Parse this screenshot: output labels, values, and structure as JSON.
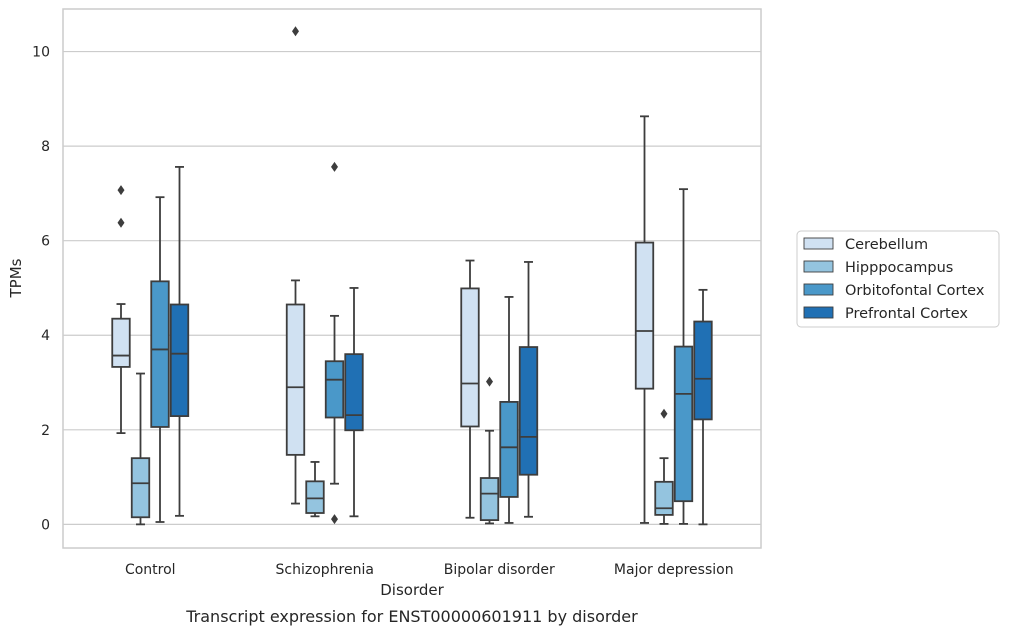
{
  "chart_data": {
    "type": "box",
    "xlabel": "Disorder",
    "ylabel": "TPMs",
    "caption": "Transcript expression for ENST00000601911 by disorder",
    "categories": [
      "Control",
      "Schizophrenia",
      "Bipolar disorder",
      "Major depression"
    ],
    "y_ticks": [
      0,
      2,
      4,
      6,
      8,
      10
    ],
    "ylim": [
      -0.5,
      10.9
    ],
    "grid": "horizontal",
    "legend_position": "right",
    "series": [
      {
        "name": "Cerebellum",
        "color": "#d0e1f2",
        "boxes": [
          {
            "whisker_low": 1.93,
            "q1": 3.33,
            "median": 3.57,
            "q3": 4.35,
            "whisker_high": 4.66,
            "outliers": [
              6.38,
              7.07
            ]
          },
          {
            "whisker_low": 0.44,
            "q1": 1.47,
            "median": 2.9,
            "q3": 4.65,
            "whisker_high": 5.16,
            "outliers": [
              10.43
            ]
          },
          {
            "whisker_low": 0.14,
            "q1": 2.07,
            "median": 2.98,
            "q3": 4.99,
            "whisker_high": 5.58,
            "outliers": []
          },
          {
            "whisker_low": 0.03,
            "q1": 2.87,
            "median": 4.09,
            "q3": 5.96,
            "whisker_high": 8.63,
            "outliers": []
          }
        ]
      },
      {
        "name": "Hipppocampus",
        "color": "#94c4df",
        "boxes": [
          {
            "whisker_low": 0.0,
            "q1": 0.15,
            "median": 0.87,
            "q3": 1.4,
            "whisker_high": 3.19,
            "outliers": []
          },
          {
            "whisker_low": 0.17,
            "q1": 0.24,
            "median": 0.55,
            "q3": 0.91,
            "whisker_high": 1.32,
            "outliers": []
          },
          {
            "whisker_low": 0.02,
            "q1": 0.09,
            "median": 0.65,
            "q3": 0.98,
            "whisker_high": 1.98,
            "outliers": [
              3.02
            ]
          },
          {
            "whisker_low": 0.01,
            "q1": 0.2,
            "median": 0.34,
            "q3": 0.9,
            "whisker_high": 1.4,
            "outliers": [
              2.34
            ]
          }
        ]
      },
      {
        "name": "Orbitofontal Cortex",
        "color": "#4a98c9",
        "boxes": [
          {
            "whisker_low": 0.05,
            "q1": 2.06,
            "median": 3.7,
            "q3": 5.14,
            "whisker_high": 6.92,
            "outliers": []
          },
          {
            "whisker_low": 0.86,
            "q1": 2.26,
            "median": 3.06,
            "q3": 3.45,
            "whisker_high": 4.41,
            "outliers": [
              0.11,
              7.56
            ]
          },
          {
            "whisker_low": 0.03,
            "q1": 0.58,
            "median": 1.63,
            "q3": 2.59,
            "whisker_high": 4.81,
            "outliers": []
          },
          {
            "whisker_low": 0.01,
            "q1": 0.49,
            "median": 2.76,
            "q3": 3.76,
            "whisker_high": 7.09,
            "outliers": []
          }
        ]
      },
      {
        "name": "Prefrontal Cortex",
        "color": "#2070b4",
        "boxes": [
          {
            "whisker_low": 0.18,
            "q1": 2.29,
            "median": 3.61,
            "q3": 4.65,
            "whisker_high": 7.56,
            "outliers": []
          },
          {
            "whisker_low": 0.17,
            "q1": 1.99,
            "median": 2.31,
            "q3": 3.6,
            "whisker_high": 5.0,
            "outliers": []
          },
          {
            "whisker_low": 0.16,
            "q1": 1.05,
            "median": 1.85,
            "q3": 3.75,
            "whisker_high": 5.55,
            "outliers": []
          },
          {
            "whisker_low": 0.0,
            "q1": 2.22,
            "median": 3.08,
            "q3": 4.29,
            "whisker_high": 4.96,
            "outliers": []
          }
        ]
      }
    ]
  }
}
